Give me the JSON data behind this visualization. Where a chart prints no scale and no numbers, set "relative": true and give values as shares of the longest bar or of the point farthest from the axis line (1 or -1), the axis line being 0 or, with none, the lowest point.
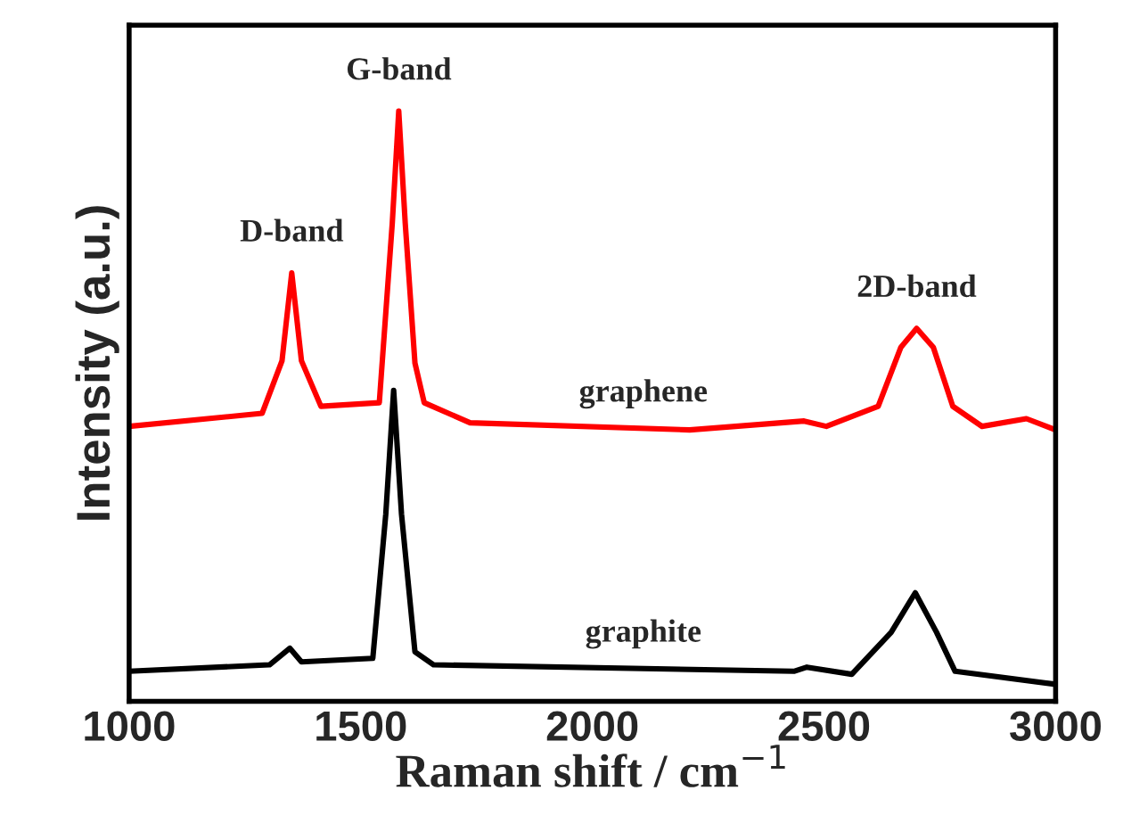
{
  "chart_data": {
    "type": "line",
    "relative": true,
    "xlabel": "Raman shift / cm$^{−1}$",
    "ylabel": "Intensity (a.u.)",
    "xlim": [
      1000,
      3000
    ],
    "xticks": [
      1000,
      1500,
      2000,
      2500,
      3000
    ],
    "grid": false,
    "legend": false,
    "marker": "none",
    "line_style": "solid",
    "series": [
      {
        "name": "graphene",
        "color": "#ff0000",
        "x": [
          1000,
          1287,
          1330,
          1351,
          1372,
          1414,
          1540,
          1568,
          1582,
          1596,
          1617,
          1637,
          1736,
          2210,
          2457,
          2505,
          2617,
          2666,
          2700,
          2736,
          2778,
          2841,
          2937,
          3000
        ],
        "values": [
          0.466,
          0.488,
          0.577,
          0.726,
          0.577,
          0.5,
          0.506,
          0.81,
          1.0,
          0.81,
          0.573,
          0.506,
          0.472,
          0.46,
          0.475,
          0.466,
          0.5,
          0.6,
          0.632,
          0.6,
          0.5,
          0.466,
          0.479,
          0.46
        ]
      },
      {
        "name": "graphite",
        "color": "#000000",
        "x": [
          1000,
          1303,
          1347,
          1372,
          1526,
          1554,
          1571,
          1588,
          1617,
          1657,
          2435,
          2463,
          2560,
          2645,
          2697,
          2743,
          2783,
          3000
        ],
        "values": [
          0.051,
          0.062,
          0.09,
          0.067,
          0.073,
          0.317,
          0.527,
          0.317,
          0.084,
          0.062,
          0.051,
          0.058,
          0.046,
          0.117,
          0.184,
          0.117,
          0.051,
          0.029
        ]
      }
    ],
    "annotations": [
      {
        "text": "D-band",
        "x": 1351,
        "y": 0.726
      },
      {
        "text": "G-band",
        "x": 1582,
        "y": 1.0
      },
      {
        "text": "2D-band",
        "x": 2700,
        "y": 0.632
      }
    ]
  }
}
